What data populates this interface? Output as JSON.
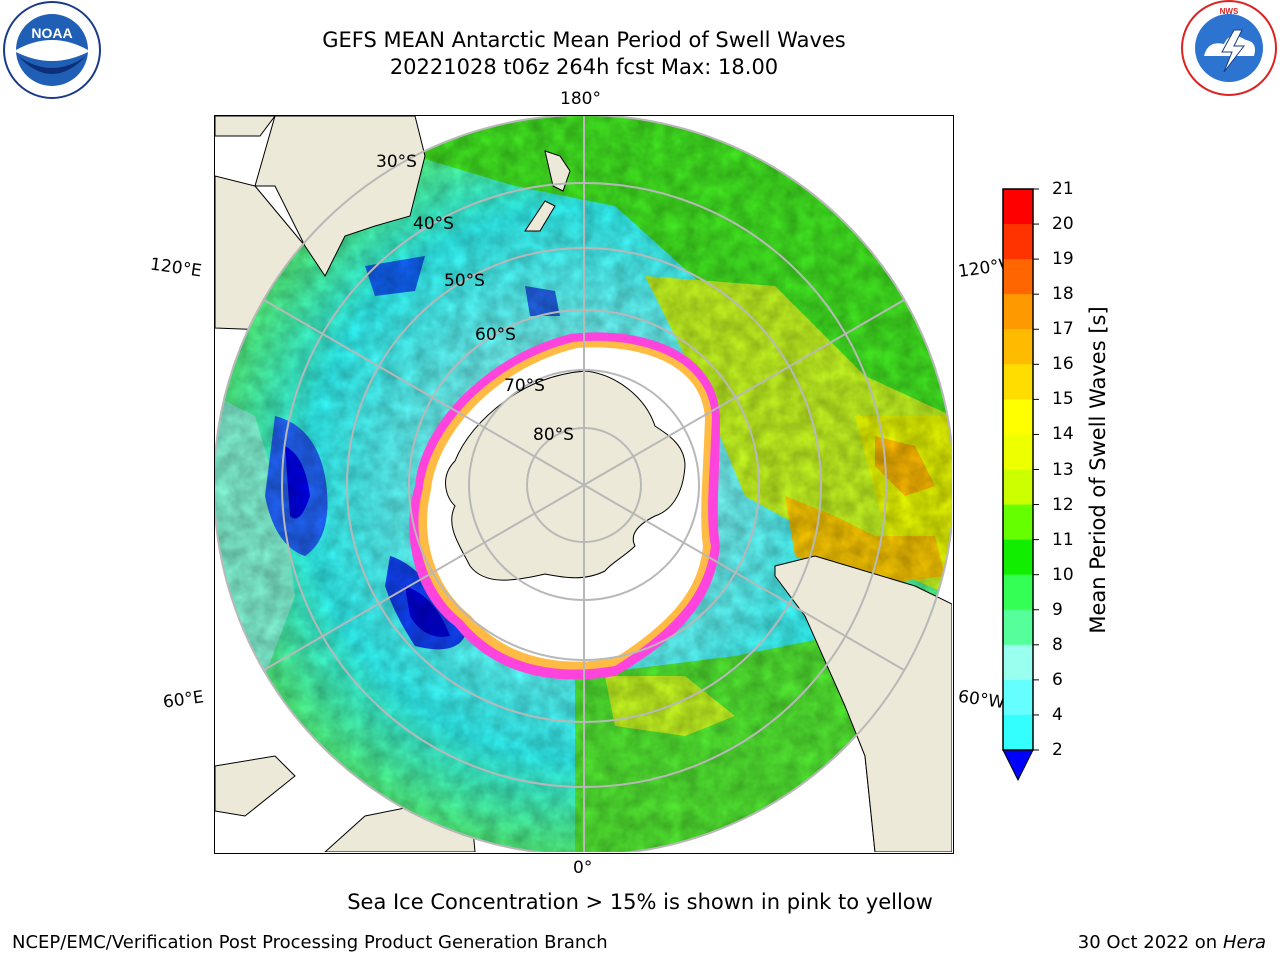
{
  "header": {
    "title_line1": "GEFS MEAN Antarctic Mean Period of Swell Waves",
    "title_line2": "20221028 t06z 264h fcst   Max: 18.00"
  },
  "logos": {
    "left": {
      "icon": "noaa-logo",
      "text": "NOAA"
    },
    "right": {
      "icon": "national-weather-service-logo",
      "text": "NATIONAL WEATHER SERVICE"
    }
  },
  "map": {
    "projection": "south-polar-stereographic",
    "longitude_labels": [
      "180°",
      "120°E",
      "120°W",
      "60°E",
      "60°W",
      "0°"
    ],
    "latitude_labels": [
      "30°S",
      "40°S",
      "50°S",
      "60°S",
      "70°S",
      "80°S"
    ],
    "colors": {
      "land": "#ece9d8",
      "grid": "#b8b8b8",
      "ice_edge": "#ff44dd",
      "ice_interior": "#ffffff"
    }
  },
  "colorbar": {
    "label": "Mean Period of Swell Waves [s]",
    "ticks": [
      "21",
      "20",
      "19",
      "18",
      "17",
      "16",
      "15",
      "14",
      "13",
      "12",
      "11",
      "10",
      "9",
      "8",
      "6",
      "4",
      "2"
    ],
    "colors_bottom_to_top": [
      "#0066ff",
      "#00ccff",
      "#33ffff",
      "#66ffff",
      "#99ffee",
      "#55ff99",
      "#33ff55",
      "#11ee00",
      "#66ff00",
      "#ccff00",
      "#eeff00",
      "#ffff00",
      "#ffdd00",
      "#ffbb00",
      "#ff9900",
      "#ff6600",
      "#ff3300",
      "#ff0000"
    ],
    "extend_color": "#0000ff"
  },
  "footer": {
    "note": "Sea Ice Concentration > 15% is shown in pink to yellow",
    "left": "NCEP/EMC/Verification Post Processing Product Generation Branch",
    "right_date": "30 Oct 2022 on ",
    "right_machine": "Hera"
  }
}
